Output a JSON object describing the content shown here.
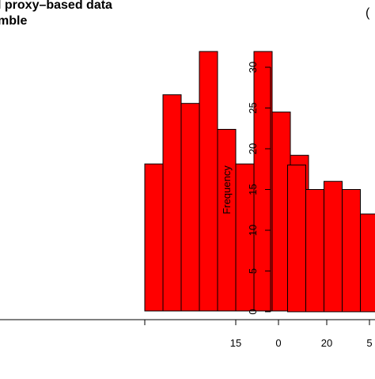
{
  "left_panel": {
    "title_line1": "l proxy–based data",
    "title_line2": "mble"
  },
  "right_panel": {
    "tag": "("
  },
  "chart_data": [
    {
      "type": "bar",
      "title": "l proxy–based data mble",
      "bar_color": "#ff0000",
      "x_ticks": [
        15,
        20
      ],
      "bins": [
        {
          "x0": 10,
          "x1": 11,
          "value": 17
        },
        {
          "x0": 11,
          "x1": 12,
          "value": 25
        },
        {
          "x0": 12,
          "x1": 13,
          "value": 24
        },
        {
          "x0": 13,
          "x1": 14,
          "value": 30
        },
        {
          "x0": 14,
          "x1": 15,
          "value": 21
        },
        {
          "x0": 15,
          "x1": 16,
          "value": 17
        },
        {
          "x0": 16,
          "x1": 17,
          "value": 30
        },
        {
          "x0": 17,
          "x1": 18,
          "value": 23
        },
        {
          "x0": 18,
          "x1": 19,
          "value": 18
        }
      ]
    },
    {
      "type": "bar",
      "ylabel": "Frequency",
      "bar_color": "#ff0000",
      "ylim": [
        0,
        30
      ],
      "y_ticks": [
        0,
        5,
        10,
        15,
        20,
        25,
        30
      ],
      "x_ticks": [
        0,
        5
      ],
      "bins": [
        {
          "x0": 0.5,
          "x1": 1.5,
          "value": 18
        },
        {
          "x0": 1.5,
          "x1": 2.5,
          "value": 15
        },
        {
          "x0": 2.5,
          "x1": 3.5,
          "value": 16
        },
        {
          "x0": 3.5,
          "x1": 4.5,
          "value": 15
        },
        {
          "x0": 4.5,
          "x1": 5.5,
          "value": 12
        }
      ]
    }
  ]
}
